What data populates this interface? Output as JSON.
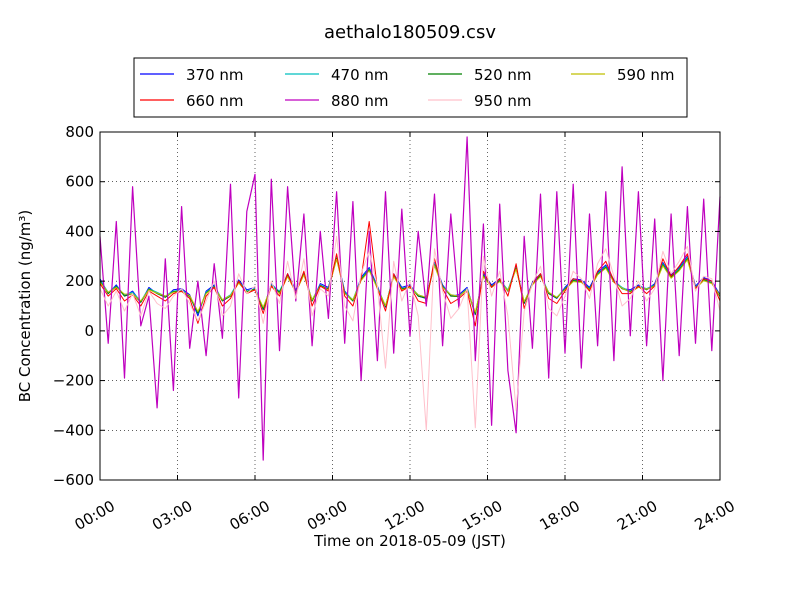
{
  "chart_data": {
    "type": "line",
    "title": "aethalo180509.csv",
    "xlabel": "Time on 2018-05-09 (JST)",
    "ylabel": "BC Concentration (ng/m³)",
    "xlim_hours": [
      0,
      24
    ],
    "ylim": [
      -600,
      800
    ],
    "x_ticks": [
      {
        "hour": 0,
        "label": "00:00"
      },
      {
        "hour": 3,
        "label": "03:00"
      },
      {
        "hour": 6,
        "label": "06:00"
      },
      {
        "hour": 9,
        "label": "09:00"
      },
      {
        "hour": 12,
        "label": "12:00"
      },
      {
        "hour": 15,
        "label": "15:00"
      },
      {
        "hour": 18,
        "label": "18:00"
      },
      {
        "hour": 21,
        "label": "21:00"
      },
      {
        "hour": 24,
        "label": "24:00"
      }
    ],
    "y_ticks": [
      {
        "value": -600,
        "label": "−600"
      },
      {
        "value": -400,
        "label": "−400"
      },
      {
        "value": -200,
        "label": "−200"
      },
      {
        "value": 0,
        "label": "0"
      },
      {
        "value": 200,
        "label": "200"
      },
      {
        "value": 400,
        "label": "400"
      },
      {
        "value": 600,
        "label": "600"
      },
      {
        "value": 800,
        "label": "800"
      }
    ],
    "grid": true,
    "legend_position": "top-center",
    "series": [
      {
        "name": "370 nm",
        "color": "#0000ff",
        "values": [
          210,
          150,
          185,
          140,
          160,
          115,
          175,
          150,
          135,
          165,
          170,
          145,
          60,
          160,
          185,
          120,
          140,
          205,
          165,
          175,
          85,
          190,
          155,
          230,
          165,
          235,
          120,
          190,
          175,
          300,
          160,
          120,
          215,
          255,
          180,
          95,
          230,
          175,
          185,
          140,
          130,
          275,
          185,
          140,
          145,
          175,
          65,
          230,
          185,
          210,
          160,
          260,
          110,
          195,
          230,
          150,
          130,
          175,
          210,
          205,
          175,
          235,
          265,
          205,
          170,
          165,
          185,
          165,
          190,
          275,
          225,
          255,
          300,
          180,
          215,
          200,
          145
        ]
      },
      {
        "name": "470 nm",
        "color": "#00bfbf",
        "values": [
          205,
          155,
          180,
          145,
          155,
          120,
          170,
          155,
          140,
          160,
          165,
          140,
          70,
          155,
          180,
          125,
          145,
          200,
          160,
          170,
          90,
          185,
          160,
          225,
          160,
          230,
          125,
          185,
          170,
          295,
          155,
          125,
          210,
          250,
          175,
          100,
          225,
          170,
          180,
          145,
          135,
          270,
          180,
          145,
          140,
          170,
          70,
          225,
          180,
          205,
          165,
          255,
          115,
          190,
          225,
          155,
          135,
          170,
          205,
          200,
          170,
          230,
          260,
          200,
          175,
          160,
          180,
          170,
          185,
          270,
          220,
          250,
          295,
          175,
          210,
          195,
          140
        ]
      },
      {
        "name": "520 nm",
        "color": "#008000",
        "values": [
          200,
          150,
          178,
          140,
          150,
          115,
          168,
          150,
          135,
          158,
          160,
          138,
          72,
          152,
          178,
          120,
          140,
          196,
          158,
          168,
          88,
          182,
          155,
          222,
          158,
          228,
          120,
          182,
          168,
          292,
          152,
          120,
          206,
          246,
          172,
          98,
          222,
          168,
          178,
          140,
          132,
          266,
          178,
          140,
          138,
          168,
          68,
          222,
          178,
          202,
          160,
          252,
          112,
          188,
          222,
          150,
          132,
          168,
          202,
          198,
          168,
          228,
          256,
          198,
          170,
          158,
          178,
          166,
          182,
          266,
          216,
          246,
          290,
          172,
          206,
          192,
          138
        ]
      },
      {
        "name": "590 nm",
        "color": "#bfbf00",
        "values": [
          195,
          155,
          175,
          148,
          148,
          120,
          165,
          152,
          140,
          155,
          158,
          142,
          78,
          150,
          175,
          125,
          142,
          192,
          155,
          165,
          95,
          180,
          150,
          218,
          155,
          225,
          125,
          180,
          165,
          288,
          150,
          125,
          202,
          242,
          170,
          102,
          218,
          165,
          175,
          145,
          135,
          262,
          175,
          145,
          140,
          165,
          75,
          218,
          175,
          198,
          162,
          248,
          118,
          185,
          218,
          155,
          135,
          165,
          198,
          195,
          165,
          225,
          252,
          195,
          172,
          155,
          175,
          168,
          180,
          262,
          212,
          242,
          286,
          170,
          202,
          190,
          142
        ]
      },
      {
        "name": "660 nm",
        "color": "#ff0000",
        "values": [
          190,
          140,
          170,
          120,
          145,
          100,
          160,
          140,
          120,
          150,
          160,
          130,
          30,
          140,
          175,
          100,
          130,
          200,
          150,
          165,
          70,
          180,
          140,
          230,
          150,
          240,
          100,
          180,
          160,
          310,
          140,
          100,
          210,
          440,
          170,
          80,
          230,
          160,
          180,
          120,
          110,
          290,
          170,
          110,
          130,
          160,
          20,
          240,
          175,
          210,
          140,
          270,
          90,
          190,
          230,
          130,
          110,
          160,
          210,
          200,
          160,
          240,
          280,
          200,
          150,
          150,
          180,
          150,
          180,
          290,
          220,
          260,
          310,
          170,
          210,
          200,
          120
        ]
      },
      {
        "name": "880 nm",
        "color": "#bf00bf",
        "values": [
          380,
          -50,
          440,
          -190,
          580,
          20,
          140,
          -310,
          290,
          -240,
          500,
          -70,
          200,
          -100,
          270,
          -30,
          590,
          -270,
          480,
          630,
          -520,
          610,
          -80,
          580,
          120,
          470,
          -60,
          400,
          50,
          560,
          -50,
          520,
          -200,
          400,
          -120,
          560,
          -90,
          490,
          -20,
          400,
          100,
          550,
          -60,
          470,
          90,
          780,
          -120,
          430,
          -380,
          510,
          -160,
          -410,
          380,
          -70,
          550,
          -190,
          560,
          -90,
          590,
          -150,
          470,
          -60,
          560,
          -120,
          660,
          -20,
          560,
          -60,
          450,
          -200,
          470,
          -100,
          500,
          -50,
          530,
          -80,
          540
        ]
      },
      {
        "name": "950 nm",
        "color": "#ffc0cb",
        "values": [
          170,
          100,
          160,
          80,
          150,
          60,
          160,
          110,
          90,
          140,
          170,
          110,
          40,
          120,
          200,
          60,
          100,
          230,
          150,
          180,
          30,
          200,
          110,
          280,
          130,
          290,
          60,
          170,
          140,
          380,
          100,
          40,
          230,
          320,
          180,
          -150,
          280,
          120,
          200,
          60,
          -400,
          330,
          160,
          50,
          90,
          170,
          -390,
          300,
          140,
          240,
          60,
          -320,
          80,
          190,
          260,
          90,
          60,
          140,
          240,
          210,
          130,
          270,
          330,
          220,
          100,
          130,
          200,
          120,
          170,
          320,
          230,
          280,
          340,
          160,
          220,
          210,
          80
        ]
      }
    ]
  }
}
